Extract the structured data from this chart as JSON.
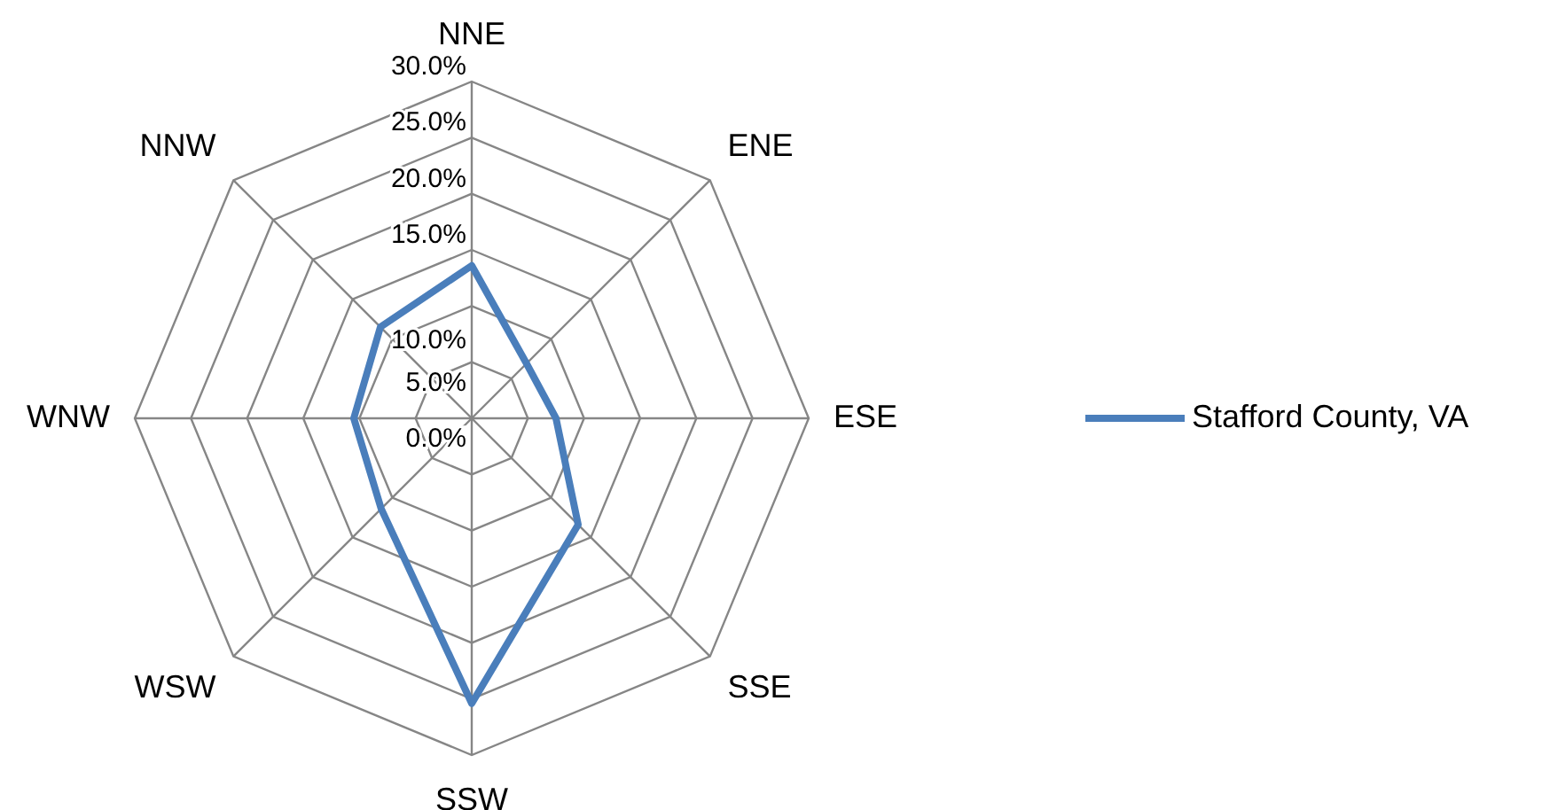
{
  "chart_data": {
    "type": "radar",
    "categories": [
      "NNE",
      "ENE",
      "ESE",
      "SSE",
      "SSW",
      "WSW",
      "WNW",
      "NNW"
    ],
    "series": [
      {
        "name": "Stafford County, VA",
        "color": "#4a7ebb",
        "values": [
          13.6,
          6.9,
          7.5,
          13.4,
          25.4,
          11.4,
          10.5,
          11.5
        ]
      }
    ],
    "ylim": [
      0,
      30
    ],
    "yticks": [
      {
        "value": 0,
        "label": "0.0%"
      },
      {
        "value": 5,
        "label": "5.0%"
      },
      {
        "value": 10,
        "label": "10.0%"
      },
      {
        "value": 15,
        "label": "15.0%"
      },
      {
        "value": 20,
        "label": "20.0%"
      },
      {
        "value": 25,
        "label": "25.0%"
      },
      {
        "value": 30,
        "label": "30.0%"
      }
    ],
    "grid": true,
    "legend": "right"
  }
}
